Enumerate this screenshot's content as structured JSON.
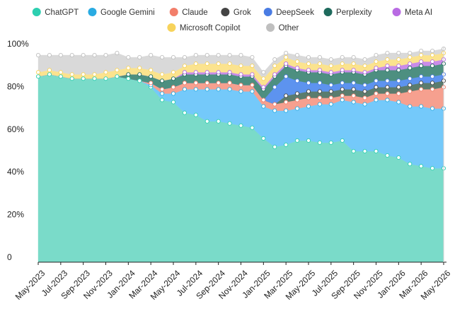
{
  "chart_data": {
    "type": "area",
    "stacked": true,
    "title": "",
    "xlabel": "",
    "ylabel": "",
    "ylim": [
      0,
      100
    ],
    "y_ticks": [
      0,
      20,
      40,
      60,
      80,
      100
    ],
    "y_tick_labels": [
      "0",
      "20%",
      "40%",
      "60%",
      "80%",
      "100%"
    ],
    "x": [
      "May-2023",
      "Jun-2023",
      "Jul-2023",
      "Aug-2023",
      "Sep-2023",
      "Oct-2023",
      "Nov-2023",
      "Dec-2023",
      "Jan-2024",
      "Feb-2024",
      "Mar-2024",
      "Apr-2024",
      "May-2024",
      "Jun-2024",
      "Jul-2024",
      "Aug-2024",
      "Sep-2024",
      "Oct-2024",
      "Nov-2024",
      "Dec-2024",
      "Jan-2025",
      "Feb-2025",
      "Mar-2025",
      "Apr-2025",
      "May-2025",
      "Jun-2025",
      "Jul-2025",
      "Aug-2025",
      "Sep-2025",
      "Oct-2025",
      "Nov-2025",
      "Dec-2025",
      "Jan-2026",
      "Feb-2026",
      "Mar-2026",
      "Apr-2026",
      "May-2026"
    ],
    "x_tick_labels": [
      "May-2023",
      "Jul-2023",
      "Sep-2023",
      "Nov-2023",
      "Jan-2024",
      "Mar-2024",
      "May-2024",
      "Jul-2024",
      "Sep-2024",
      "Nov-2024",
      "Jan-2025",
      "Mar-2025",
      "May-2025",
      "Jul-2025",
      "Sep-2025",
      "Nov-2025",
      "Jan-2026",
      "Mar-2026",
      "May-2026"
    ],
    "legend_position": "top",
    "grid": false,
    "series": [
      {
        "name": "ChatGPT",
        "color": "#7adbc9",
        "marker_color": "#2dcfb0",
        "values": [
          87,
          88,
          87,
          86,
          86,
          86,
          86,
          87,
          86,
          85,
          82,
          76,
          75,
          70,
          69,
          66,
          66,
          65,
          64,
          63,
          58,
          54,
          55,
          57,
          57,
          56,
          56,
          57,
          52,
          52,
          52,
          50,
          49,
          46,
          45,
          44,
          44
        ]
      },
      {
        "name": "Google Gemini",
        "color": "#74c9fa",
        "marker_color": "#29abe2",
        "values": [
          0,
          0,
          0,
          0,
          0,
          0,
          0,
          0,
          0,
          0,
          1,
          3,
          4,
          11,
          12,
          15,
          15,
          16,
          16,
          17,
          15,
          17,
          16,
          15,
          16,
          18,
          18,
          19,
          23,
          22,
          24,
          26,
          26,
          27,
          28,
          28,
          28
        ]
      },
      {
        "name": "Claude",
        "color": "#f6a08f",
        "marker_color": "#f27e6a",
        "values": [
          0,
          0,
          0,
          0,
          0,
          0,
          0,
          0,
          0,
          0,
          1,
          2,
          3,
          3,
          3,
          3,
          3,
          3,
          3,
          3,
          3,
          3,
          4,
          4,
          4,
          3,
          3,
          2,
          3,
          3,
          3,
          3,
          4,
          7,
          8,
          9,
          10
        ]
      },
      {
        "name": "Grok",
        "color": "#5b7c6e",
        "marker_color": "#444444",
        "values": [
          0,
          0,
          0,
          0,
          0,
          0,
          0,
          0,
          0,
          0,
          0,
          0,
          0,
          0,
          0,
          0,
          0,
          0,
          0,
          0,
          0,
          0,
          3,
          3,
          3,
          3,
          3,
          3,
          3,
          3,
          3,
          3,
          3,
          3,
          3,
          3,
          3
        ]
      },
      {
        "name": "DeepSeek",
        "color": "#5d93ef",
        "marker_color": "#4a7ce3",
        "values": [
          0,
          0,
          0,
          0,
          0,
          0,
          0,
          0,
          0,
          0,
          0,
          0,
          0,
          0,
          0,
          0,
          0,
          0,
          0,
          0,
          0,
          8,
          9,
          6,
          4,
          4,
          3,
          3,
          3,
          3,
          3,
          3,
          3,
          3,
          3,
          3,
          3
        ]
      },
      {
        "name": "Perplexity",
        "color": "#4d8f80",
        "marker_color": "#1e6a5c",
        "values": [
          0,
          0,
          0,
          0,
          0,
          0,
          0,
          0,
          2,
          3,
          3,
          4,
          4,
          4,
          4,
          4,
          4,
          4,
          4,
          4,
          5,
          5,
          5,
          5,
          5,
          5,
          5,
          5,
          5,
          5,
          5,
          5,
          5,
          5,
          5,
          5,
          5
        ]
      },
      {
        "name": "Meta AI",
        "color": "#c98ce9",
        "marker_color": "#b96be3",
        "values": [
          0,
          0,
          0,
          0,
          0,
          0,
          0,
          0,
          0,
          0,
          0,
          0,
          0,
          1,
          1,
          1,
          1,
          1,
          1,
          1,
          1,
          1,
          1,
          1,
          1,
          1,
          1,
          1,
          1,
          1,
          1,
          2,
          2,
          2,
          2,
          2,
          2
        ]
      },
      {
        "name": "Microsoft Copilot",
        "color": "#fbe38e",
        "marker_color": "#f7d35b",
        "values": [
          2,
          2,
          2,
          2,
          2,
          2,
          3,
          3,
          3,
          3,
          3,
          3,
          3,
          3,
          4,
          4,
          4,
          4,
          4,
          4,
          4,
          4,
          3,
          3,
          3,
          3,
          3,
          3,
          3,
          3,
          3,
          3,
          3,
          3,
          3,
          3,
          3
        ]
      },
      {
        "name": "Other",
        "color": "#d9d9d9",
        "marker_color": "#bfbfbf",
        "values": [
          8,
          7,
          8,
          9,
          9,
          9,
          8,
          8,
          5,
          5,
          7,
          8,
          7,
          4,
          4,
          4,
          4,
          4,
          5,
          4,
          3,
          3,
          2,
          3,
          3,
          3,
          3,
          3,
          3,
          3,
          3,
          3,
          3,
          2,
          2,
          2,
          2
        ]
      }
    ]
  }
}
